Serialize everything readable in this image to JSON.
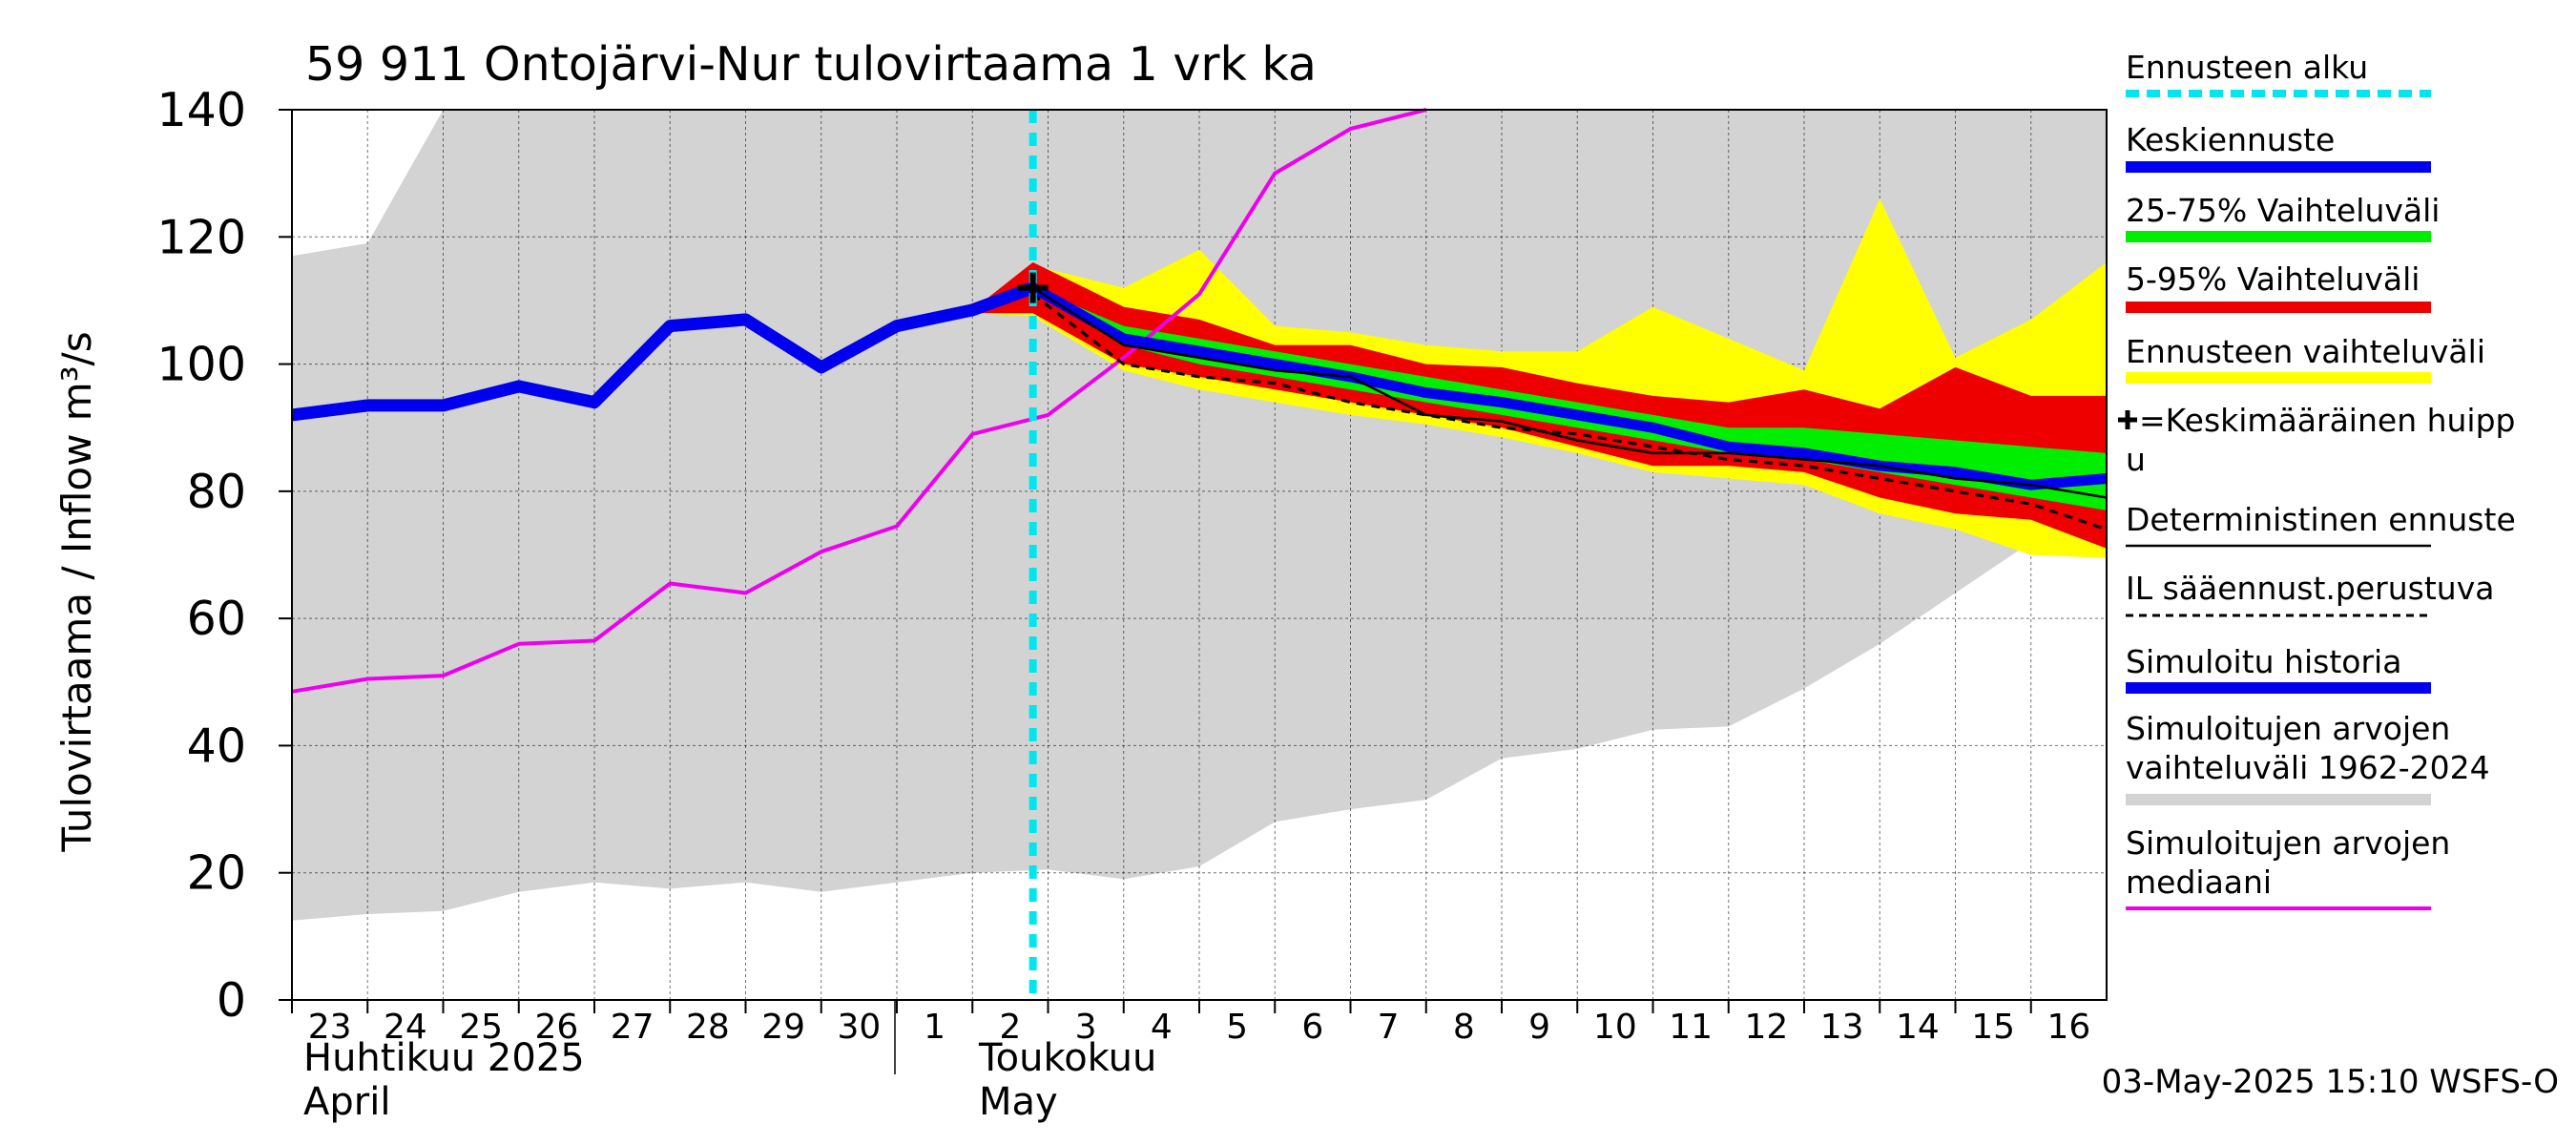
{
  "chart_data": {
    "type": "line",
    "title": "59 911 Ontojärvi-Nur tulovirtaama 1 vrk ka",
    "ylabel": "Tulovirtaama / Inflow   m³/s",
    "ylim": [
      0,
      140
    ],
    "yticks": [
      0,
      20,
      40,
      60,
      80,
      100,
      120,
      140
    ],
    "x_range": [
      23,
      47
    ],
    "x_ticks": [
      {
        "x": 23,
        "label": "23"
      },
      {
        "x": 24,
        "label": "24"
      },
      {
        "x": 25,
        "label": "25"
      },
      {
        "x": 26,
        "label": "26"
      },
      {
        "x": 27,
        "label": "27"
      },
      {
        "x": 28,
        "label": "28"
      },
      {
        "x": 29,
        "label": "29"
      },
      {
        "x": 30,
        "label": "30"
      },
      {
        "x": 31,
        "label": "1"
      },
      {
        "x": 32,
        "label": "2"
      },
      {
        "x": 33,
        "label": "3"
      },
      {
        "x": 34,
        "label": "4"
      },
      {
        "x": 35,
        "label": "5"
      },
      {
        "x": 36,
        "label": "6"
      },
      {
        "x": 37,
        "label": "7"
      },
      {
        "x": 38,
        "label": "8"
      },
      {
        "x": 39,
        "label": "9"
      },
      {
        "x": 40,
        "label": "10"
      },
      {
        "x": 41,
        "label": "11"
      },
      {
        "x": 42,
        "label": "12"
      },
      {
        "x": 43,
        "label": "13"
      },
      {
        "x": 44,
        "label": "14"
      },
      {
        "x": 45,
        "label": "15"
      },
      {
        "x": 46,
        "label": "16"
      }
    ],
    "month_labels": {
      "april_fi": "Huhtikuu  2025",
      "april_en": "April",
      "may_fi": "Toukokuu",
      "may_en": "May"
    },
    "forecast_start_x": 32.8,
    "timestamp": "03-May-2025 15:10 WSFS-O",
    "legend": [
      {
        "key": "forecast_start",
        "label": "Ennusteen alku",
        "color": "#00e5ee"
      },
      {
        "key": "mean_forecast",
        "label": "Keskiennuste",
        "color": "#0000ee"
      },
      {
        "key": "range_25_75",
        "label": "25-75% Vaihteluväli",
        "color": "#00ee00"
      },
      {
        "key": "range_5_95",
        "label": "5-95% Vaihteluväli",
        "color": "#ee0000"
      },
      {
        "key": "forecast_range",
        "label": "Ennusteen vaihteluväli",
        "color": "#ffff00"
      },
      {
        "key": "mean_peak",
        "label": "=Keskimääräinen huipp",
        "label2": "u",
        "color": "#000000"
      },
      {
        "key": "deterministic",
        "label": "Deterministinen ennuste",
        "color": "#000000"
      },
      {
        "key": "il_forecast",
        "label": "IL sääennust.perustuva",
        "color": "#000000"
      },
      {
        "key": "sim_history",
        "label": "Simuloitu historia",
        "color": "#0000ee"
      },
      {
        "key": "sim_range",
        "label": "Simuloitujen arvojen",
        "label2": "vaihteluväli 1962-2024",
        "color": "#d3d3d3"
      },
      {
        "key": "sim_median",
        "label": "Simuloitujen arvojen",
        "label2": "mediaani",
        "color": "#ee00ee"
      }
    ],
    "sim_range": {
      "x": [
        23,
        24,
        25,
        26,
        27,
        28,
        29,
        30,
        31,
        32,
        33,
        34,
        35,
        36,
        37,
        38,
        39,
        40,
        41,
        42,
        43,
        44,
        45,
        46,
        47
      ],
      "low": [
        12.5,
        13.5,
        14,
        17,
        18.5,
        17.5,
        18.5,
        17,
        18.5,
        20,
        20.5,
        19,
        21,
        28,
        30,
        31.5,
        38,
        39.5,
        42.5,
        43,
        49,
        56,
        64,
        72,
        80
      ],
      "high": [
        117,
        119,
        142,
        142,
        142,
        142,
        142,
        142,
        142,
        142,
        142,
        142,
        142,
        142,
        142,
        142,
        142,
        142,
        142,
        142,
        142,
        142,
        142,
        142,
        142
      ]
    },
    "sim_median": {
      "x": [
        23,
        24,
        25,
        26,
        27,
        28,
        29,
        30,
        31,
        32,
        33,
        34,
        35,
        36,
        37,
        38
      ],
      "y": [
        48.5,
        50.5,
        51,
        56,
        56.5,
        65.5,
        64,
        70.5,
        74.5,
        89,
        92,
        101,
        111,
        130,
        137,
        141
      ]
    },
    "sim_history": {
      "x": [
        23,
        24,
        25,
        26,
        27,
        28,
        29,
        30,
        31,
        32,
        32.8
      ],
      "y": [
        92,
        93.5,
        93.5,
        96.5,
        94,
        106,
        107,
        99.5,
        106,
        108.5,
        112
      ]
    },
    "forecast_range": {
      "x": [
        32,
        32.8,
        34,
        35,
        36,
        37,
        38,
        39,
        40,
        41,
        42,
        43,
        44,
        45,
        46,
        47
      ],
      "low": [
        108,
        107.5,
        99,
        96,
        94,
        92,
        90.5,
        88.5,
        86,
        83,
        82,
        81,
        76.5,
        74,
        70,
        69.5
      ],
      "high": [
        108.5,
        115.5,
        112,
        118,
        106,
        105,
        103,
        102,
        102,
        109,
        104,
        99,
        126,
        101,
        107,
        116
      ]
    },
    "range_5_95": {
      "x": [
        32,
        32.8,
        34,
        35,
        36,
        37,
        38,
        39,
        40,
        41,
        42,
        43,
        44,
        45,
        46,
        47
      ],
      "low": [
        108,
        108,
        100,
        98,
        96,
        94,
        92,
        90,
        87,
        84,
        84,
        83,
        79,
        76.5,
        75.5,
        71
      ],
      "high": [
        108.5,
        116,
        109,
        107,
        103,
        103,
        100,
        99.5,
        97,
        95,
        94,
        96,
        93,
        99.5,
        95,
        95
      ]
    },
    "range_25_75": {
      "x": [
        32.8,
        34,
        35,
        36,
        37,
        38,
        39,
        40,
        41,
        42,
        43,
        44,
        45,
        46,
        47
      ],
      "low": [
        112,
        103,
        100,
        98,
        96,
        94,
        92,
        90,
        88,
        86,
        85,
        83,
        81,
        79,
        77
      ],
      "high": [
        112,
        106,
        104,
        102,
        100,
        98,
        96,
        94,
        92,
        90,
        90,
        89,
        88,
        87,
        86
      ]
    },
    "mean_forecast": {
      "x": [
        32.8,
        34,
        35,
        36,
        37,
        38,
        39,
        40,
        41,
        42,
        43,
        44,
        45,
        46,
        47
      ],
      "y": [
        112,
        104,
        102,
        100,
        98,
        95.5,
        94,
        92,
        90,
        87,
        86,
        84,
        83,
        81,
        82
      ]
    },
    "deterministic": {
      "x": [
        32.8,
        34,
        35,
        36,
        37,
        37.5,
        38,
        39,
        40,
        41,
        42,
        43,
        44,
        45,
        46,
        47
      ],
      "y": [
        112,
        103,
        101,
        99,
        98,
        95,
        92,
        91,
        88,
        86,
        86,
        85,
        84,
        82,
        81,
        79
      ]
    },
    "il_forecast": {
      "x": [
        32.8,
        34,
        35,
        36,
        37,
        38,
        39,
        40,
        41,
        42,
        43,
        44,
        45,
        46,
        47
      ],
      "y": [
        111,
        100,
        98,
        97,
        94,
        92,
        90,
        89,
        87,
        85,
        84,
        82,
        80,
        78,
        74
      ]
    },
    "mean_peak": {
      "x": 32.8,
      "y": 112
    }
  }
}
